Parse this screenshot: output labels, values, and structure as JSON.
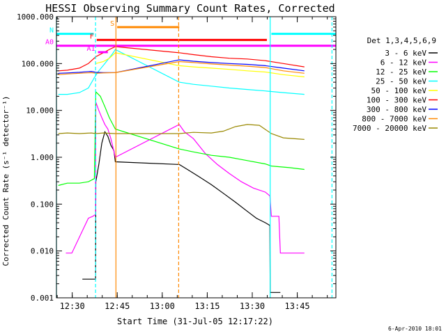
{
  "chart_data": {
    "type": "line",
    "title": "HESSI Observing Summary Count Rates, Corrected",
    "xlabel": "Start Time (31-Jul-05 12:17:22)",
    "ylabel": "Corrected Count Rate (s⁻¹ detector⁻¹)",
    "yscale": "log",
    "ylim": [
      0.001,
      1000
    ],
    "xlim_minutes": [
      12.37,
      105.5
    ],
    "x_unit": "minutes after 12:17:22",
    "yticks": [
      {
        "value": 0.001,
        "label": "0.001"
      },
      {
        "value": 0.01,
        "label": "0.010"
      },
      {
        "value": 0.1,
        "label": "0.100"
      },
      {
        "value": 1,
        "label": "1.000"
      },
      {
        "value": 10,
        "label": "10.000"
      },
      {
        "value": 100,
        "label": "100.000"
      },
      {
        "value": 1000,
        "label": "1000.000"
      }
    ],
    "xticks": [
      {
        "value": 17.63,
        "label": "12:30"
      },
      {
        "value": 32.63,
        "label": "12:45"
      },
      {
        "value": 47.63,
        "label": "13:00"
      },
      {
        "value": 62.63,
        "label": "13:15"
      },
      {
        "value": 77.63,
        "label": "13:30"
      },
      {
        "value": 92.63,
        "label": "13:45"
      }
    ],
    "legend_title": "Det 1,3,4,5,6,9",
    "legend_position": "right",
    "series": [
      {
        "name": "3 - 6 keV",
        "color": "#000000",
        "points": [
          [
            21.0,
            0.0025
          ],
          [
            23.0,
            0.0025
          ],
          [
            25.4,
            0.0025
          ],
          [
            25.5,
            0.3
          ],
          [
            26.5,
            0.7
          ],
          [
            27.5,
            2.0
          ],
          [
            28.5,
            3.5
          ],
          [
            29.5,
            2.8
          ],
          [
            30.5,
            1.8
          ],
          [
            31.5,
            1.4
          ],
          [
            32.0,
            0.8
          ],
          [
            53.3,
            0.7
          ],
          [
            56.0,
            0.55
          ],
          [
            60.0,
            0.38
          ],
          [
            64.0,
            0.26
          ],
          [
            68.0,
            0.17
          ],
          [
            72.0,
            0.11
          ],
          [
            76.0,
            0.07
          ],
          [
            79.0,
            0.05
          ],
          [
            82.0,
            0.04
          ],
          [
            83.5,
            0.035
          ],
          [
            83.6,
            0.0013
          ],
          [
            87.0,
            0.0013
          ]
        ]
      },
      {
        "name": "6 - 12 keV",
        "color": "#ff00ff",
        "points": [
          [
            15.5,
            0.009
          ],
          [
            17.5,
            0.009
          ],
          [
            23.0,
            0.05
          ],
          [
            24.5,
            0.055
          ],
          [
            25.4,
            0.06
          ],
          [
            25.5,
            15
          ],
          [
            26.5,
            10
          ],
          [
            27.5,
            7
          ],
          [
            28.5,
            5
          ],
          [
            29.5,
            4
          ],
          [
            30.5,
            2.5
          ],
          [
            32.0,
            1.0
          ],
          [
            53.3,
            5.0
          ],
          [
            55.0,
            3.5
          ],
          [
            58.0,
            2.5
          ],
          [
            62.0,
            1.2
          ],
          [
            66.0,
            0.7
          ],
          [
            70.0,
            0.45
          ],
          [
            74.0,
            0.3
          ],
          [
            78.0,
            0.22
          ],
          [
            82.0,
            0.18
          ],
          [
            83.5,
            0.15
          ],
          [
            84.0,
            0.055
          ],
          [
            86.5,
            0.055
          ],
          [
            87.0,
            0.009
          ],
          [
            95.0,
            0.009
          ]
        ]
      },
      {
        "name": "12 - 25 keV",
        "color": "#00ff00",
        "points": [
          [
            13.0,
            0.25
          ],
          [
            16.0,
            0.28
          ],
          [
            20.0,
            0.28
          ],
          [
            23.0,
            0.3
          ],
          [
            25.0,
            0.35
          ],
          [
            25.5,
            25
          ],
          [
            27.0,
            20
          ],
          [
            28.5,
            12
          ],
          [
            30.0,
            7
          ],
          [
            32.0,
            4
          ],
          [
            53.3,
            1.5
          ],
          [
            58.0,
            1.3
          ],
          [
            64.0,
            1.1
          ],
          [
            70.0,
            1.0
          ],
          [
            76.0,
            0.85
          ],
          [
            82.0,
            0.72
          ],
          [
            84.0,
            0.65
          ],
          [
            90.0,
            0.6
          ],
          [
            95.0,
            0.55
          ]
        ]
      },
      {
        "name": "25 - 50 keV",
        "color": "#00ffff",
        "points": [
          [
            13.0,
            22
          ],
          [
            16.0,
            22
          ],
          [
            20.0,
            24
          ],
          [
            23.0,
            30
          ],
          [
            25.0,
            50
          ],
          [
            26.5,
            70
          ],
          [
            28.5,
            100
          ],
          [
            31.0,
            160
          ],
          [
            32.0,
            200
          ],
          [
            53.3,
            40
          ],
          [
            58.0,
            36
          ],
          [
            64.0,
            33
          ],
          [
            70.0,
            30
          ],
          [
            76.0,
            28
          ],
          [
            82.0,
            26
          ],
          [
            88.0,
            24
          ],
          [
            95.0,
            22
          ]
        ]
      },
      {
        "name": "50 - 100 keV",
        "color": "#ffff00",
        "points": [
          [
            25.5,
            100
          ],
          [
            28.0,
            110
          ],
          [
            30.0,
            130
          ],
          [
            32.0,
            170
          ],
          [
            53.3,
            90
          ],
          [
            58.0,
            85
          ],
          [
            64.0,
            80
          ],
          [
            70.0,
            75
          ],
          [
            76.0,
            70
          ],
          [
            82.0,
            66
          ],
          [
            88.0,
            58
          ],
          [
            95.0,
            52
          ]
        ]
      },
      {
        "name": "100 - 300 keV",
        "color": "#ff0000",
        "points": [
          [
            13.0,
            70
          ],
          [
            16.0,
            72
          ],
          [
            20.0,
            80
          ],
          [
            23.0,
            100
          ],
          [
            25.5,
            140
          ],
          [
            28.0,
            170
          ],
          [
            30.0,
            200
          ],
          [
            32.0,
            230
          ],
          [
            53.3,
            170
          ],
          [
            58.0,
            155
          ],
          [
            64.0,
            140
          ],
          [
            70.0,
            130
          ],
          [
            76.0,
            125
          ],
          [
            82.0,
            115
          ],
          [
            88.0,
            100
          ],
          [
            95.0,
            85
          ]
        ]
      },
      {
        "name": "300 - 800 keV",
        "color": "#0000ff",
        "points": [
          [
            13.0,
            62
          ],
          [
            16.0,
            63
          ],
          [
            20.0,
            65
          ],
          [
            24.0,
            68
          ],
          [
            25.5,
            65
          ],
          [
            28.0,
            64
          ],
          [
            32.0,
            64
          ],
          [
            53.3,
            120
          ],
          [
            58.0,
            112
          ],
          [
            64.0,
            105
          ],
          [
            70.0,
            100
          ],
          [
            76.0,
            96
          ],
          [
            82.0,
            90
          ],
          [
            88.0,
            80
          ],
          [
            95.0,
            70
          ]
        ]
      },
      {
        "name": "800 - 7000 keV",
        "color": "#ff8800",
        "points": [
          [
            13.0,
            58
          ],
          [
            16.0,
            60
          ],
          [
            20.0,
            62
          ],
          [
            24.0,
            64
          ],
          [
            25.5,
            62
          ],
          [
            28.0,
            63
          ],
          [
            32.0,
            64
          ],
          [
            53.3,
            110
          ],
          [
            58.0,
            105
          ],
          [
            64.0,
            98
          ],
          [
            70.0,
            93
          ],
          [
            76.0,
            88
          ],
          [
            82.0,
            82
          ],
          [
            88.0,
            70
          ],
          [
            95.0,
            62
          ]
        ]
      },
      {
        "name": "7000 - 20000 keV",
        "color": "#998800",
        "points": [
          [
            13.0,
            3.2
          ],
          [
            16.0,
            3.3
          ],
          [
            20.0,
            3.2
          ],
          [
            24.0,
            3.3
          ],
          [
            25.5,
            3.2
          ],
          [
            28.0,
            3.3
          ],
          [
            32.0,
            3.2
          ],
          [
            53.3,
            3.2
          ],
          [
            58.0,
            3.4
          ],
          [
            64.0,
            3.3
          ],
          [
            68.0,
            3.6
          ],
          [
            72.0,
            4.5
          ],
          [
            76.0,
            5.0
          ],
          [
            80.0,
            4.8
          ],
          [
            84.0,
            3.2
          ],
          [
            88.0,
            2.6
          ],
          [
            95.0,
            2.4
          ]
        ]
      }
    ],
    "vertical_lines": [
      {
        "x": 12.37,
        "color": "#00ffff",
        "dashed": false
      },
      {
        "x": 25.4,
        "color": "#00ffff",
        "dashed": true
      },
      {
        "x": 32.2,
        "color": "#ff8800",
        "dashed": false
      },
      {
        "x": 53.1,
        "color": "#ff8800",
        "dashed": true
      },
      {
        "x": 83.6,
        "color": "#00ffff",
        "dashed": false
      },
      {
        "x": 104.2,
        "color": "#00ffff",
        "dashed": true
      }
    ],
    "flag_bars": [
      {
        "label": "S",
        "color": "#ff8800",
        "y": 600,
        "x0": 32.6,
        "x1": 53.3
      },
      {
        "label": "N",
        "color": "#00ffff",
        "y": 430,
        "x0": 12.37,
        "x1": 24.8
      },
      {
        "label": "N",
        "color": "#00ffff",
        "y": 430,
        "x0": 84.0,
        "x1": 105.5
      },
      {
        "label": "F",
        "color": "#ff0000",
        "y": 320,
        "x0": 25.8,
        "x1": 82.5
      },
      {
        "label": "A0",
        "color": "#ff00ff",
        "y": 240,
        "x0": 12.37,
        "x1": 105.5
      },
      {
        "label": "A1",
        "color": "#ff00ff",
        "y": 175,
        "x0": 26.2,
        "x1": 29.5
      }
    ],
    "footer_date": "6-Apr-2010 18:01"
  }
}
